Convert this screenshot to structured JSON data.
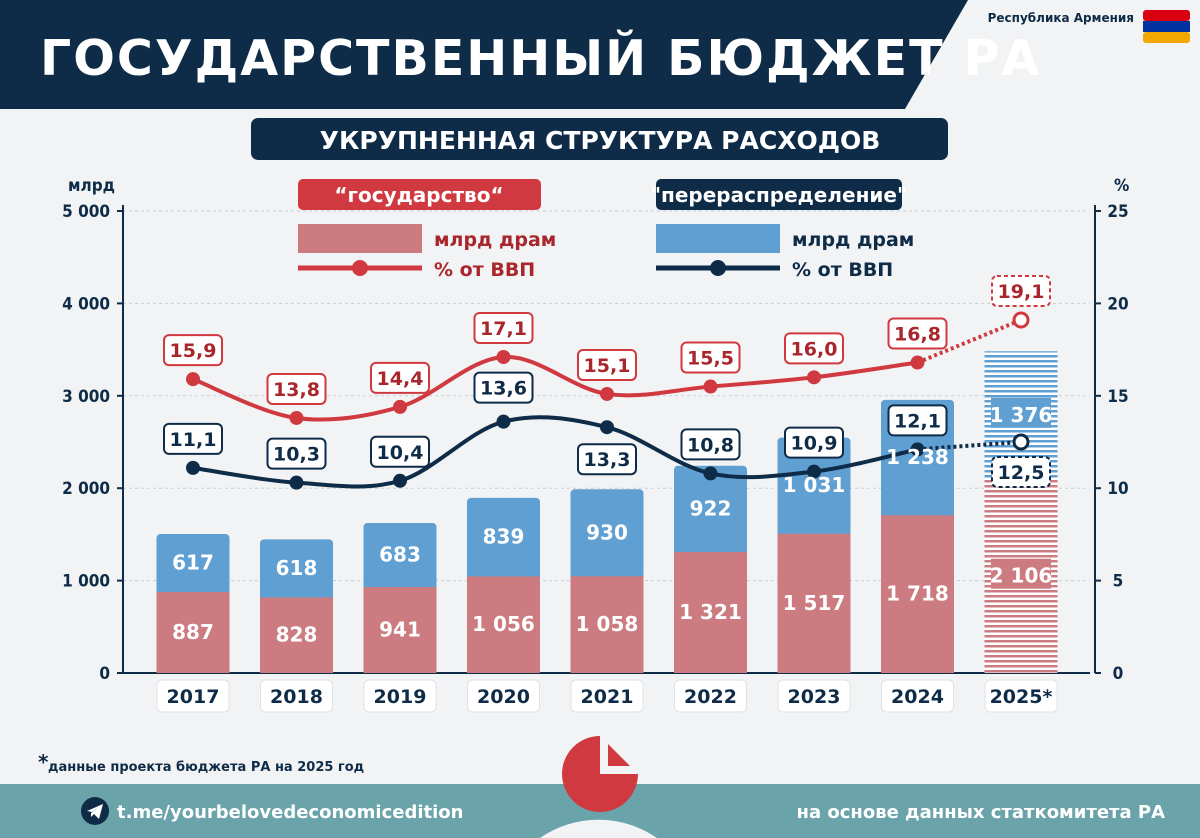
{
  "header": {
    "title": "ГОСУДАРСТВЕННЫЙ БЮДЖЕТ РА",
    "country_label": "Республика Армения",
    "subtitle": "УКРУПНЕННАЯ СТРУКТУРА РАСХОДОВ"
  },
  "footer": {
    "footnote_mark": "*",
    "footnote": "данные проекта бюджета РА на 2025 год",
    "telegram_link": "t.me/yourbelovedeconomicedition",
    "source": "на основе данных статкомитета РА",
    "telegram_icon": "telegram-icon",
    "logo_icon": "pie-chart-logo-icon"
  },
  "legend": {
    "state_title": "“государство“",
    "state_bar": "млрд драм",
    "state_line": "% от ВВП",
    "redis_title": "\"перераспределение\"",
    "redis_bar": "млрд драм",
    "redis_line": "% от ВВП"
  },
  "colors": {
    "navy": "#0e2b47",
    "red": "#d0393f",
    "pink_bar": "#cc7b80",
    "blue_bar": "#5f9fd2",
    "flag_red": "#d90012",
    "flag_blue": "#0033a0",
    "flag_orange": "#f2a800"
  },
  "chart_data": {
    "type": "bar",
    "stacked": true,
    "categories": [
      "2017",
      "2018",
      "2019",
      "2020",
      "2021",
      "2022",
      "2023",
      "2024",
      "2025*"
    ],
    "y_left_label": "млрд",
    "y_right_label": "%",
    "y_left_ticks": [
      "0",
      "1 000",
      "2 000",
      "3 000",
      "4 000",
      "5 000"
    ],
    "y_right_ticks": [
      "0",
      "5",
      "10",
      "15",
      "20",
      "25"
    ],
    "ylim_left": [
      0,
      5000
    ],
    "ylim_right": [
      0,
      25
    ],
    "grid": true,
    "projected_category": "2025*",
    "series": [
      {
        "name": "“государство“",
        "kind": "bar",
        "values": [
          887,
          828,
          941,
          1056,
          1058,
          1321,
          1517,
          1718,
          2106
        ],
        "labels": [
          "887",
          "828",
          "941",
          "1 056",
          "1 058",
          "1 321",
          "1 517",
          "1 718",
          "2 106"
        ]
      },
      {
        "name": "\"перераспределение\"",
        "kind": "bar",
        "values": [
          617,
          618,
          683,
          839,
          930,
          922,
          1031,
          1238,
          1376
        ],
        "labels": [
          "617",
          "618",
          "683",
          "839",
          "930",
          "922",
          "1 031",
          "1 238",
          "1 376"
        ]
      },
      {
        "name": "“государство“",
        "kind": "line",
        "axis": "right",
        "values": [
          15.9,
          13.8,
          14.4,
          17.1,
          15.1,
          15.5,
          16.0,
          16.8,
          19.1
        ],
        "labels": [
          "15,9",
          "13,8",
          "14,4",
          "17,1",
          "15,1",
          "15,5",
          "16,0",
          "16,8",
          "19,1"
        ]
      },
      {
        "name": "\"перераспределение\"",
        "kind": "line",
        "axis": "right",
        "values": [
          11.1,
          10.3,
          10.4,
          13.6,
          13.3,
          10.8,
          10.9,
          12.1,
          12.5
        ],
        "labels": [
          "11,1",
          "10,3",
          "10,4",
          "13,6",
          "13,3",
          "10,8",
          "10,9",
          "12,1",
          "12,5"
        ]
      }
    ]
  }
}
